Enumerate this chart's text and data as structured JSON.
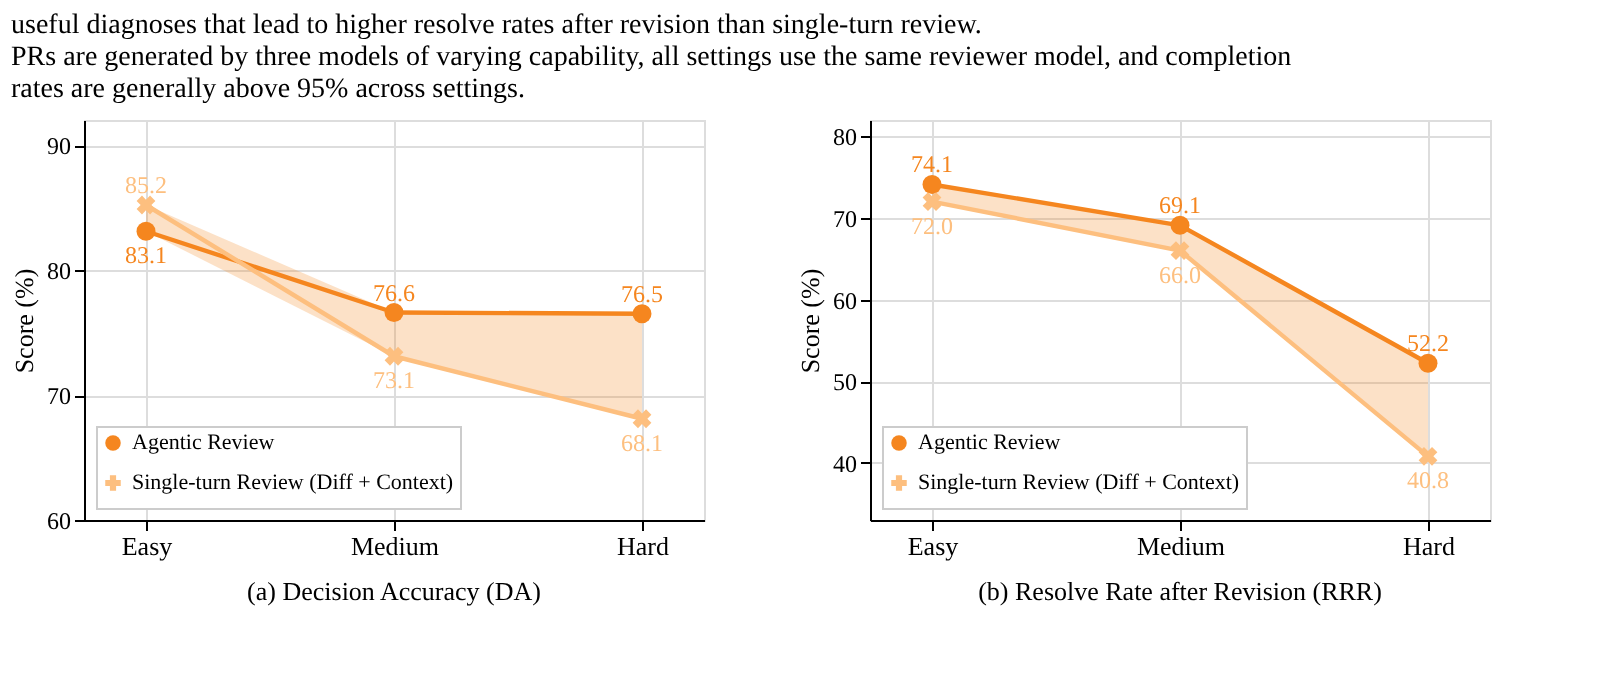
{
  "chart_data": [
    {
      "type": "line",
      "title": "(a) Decision Accuracy (DA)",
      "ylabel": "Score (%)",
      "annotations": [
        "useful diagnoses that lead to higher resolve rates after revision than single-turn review.",
        "PRs are generated by three models of varying capability, all settings use the same reviewer model, and completion rates are generally above 95% across settings."
      ],
      "categories": [
        "Easy",
        "Medium",
        "Hard"
      ],
      "series": [
        {
          "name": "Agentic Review",
          "color": "#f5861f",
          "marker": "circle",
          "values": [
            83.1,
            76.6,
            76.5
          ],
          "lower": [
            83.1,
            73.1,
            68.1
          ],
          "upper": [
            85.2,
            76.6,
            76.5
          ]
        },
        {
          "name": "Single-turn Review (Diff + Context)",
          "color": "#fdbf7f",
          "marker": "cross",
          "values": [
            85.2,
            73.1,
            68.1
          ]
        }
      ],
      "ylim": [
        60,
        92
      ],
      "yticks": [
        60,
        70,
        80,
        90
      ],
      "grid": true,
      "legend": "bottom left",
      "data_labels": true
    },
    {
      "type": "line",
      "title": "(b) Resolve Rate after Revision (RRR)",
      "ylabel": "Score (%)",
      "categories": [
        "Easy",
        "Medium",
        "Hard"
      ],
      "series": [
        {
          "name": "Agentic Review",
          "color": "#f5861f",
          "marker": "circle",
          "values": [
            74.1,
            69.1,
            52.2
          ],
          "lower": [
            72.0,
            66.0,
            40.8
          ],
          "upper": [
            74.1,
            69.1,
            52.2
          ]
        },
        {
          "name": "Single-turn Review (Diff + Context)",
          "color": "#fdbf7f",
          "marker": "cross",
          "values": [
            72.0,
            66.0,
            40.8
          ],
          "value_labels": [
            "72.0",
            "66.0",
            "40.8"
          ]
        }
      ],
      "ylim": [
        33,
        82
      ],
      "yticks": [
        40,
        50,
        60,
        70,
        80
      ],
      "grid": true,
      "legend": "bottom left",
      "data_labels": true
    }
  ]
}
